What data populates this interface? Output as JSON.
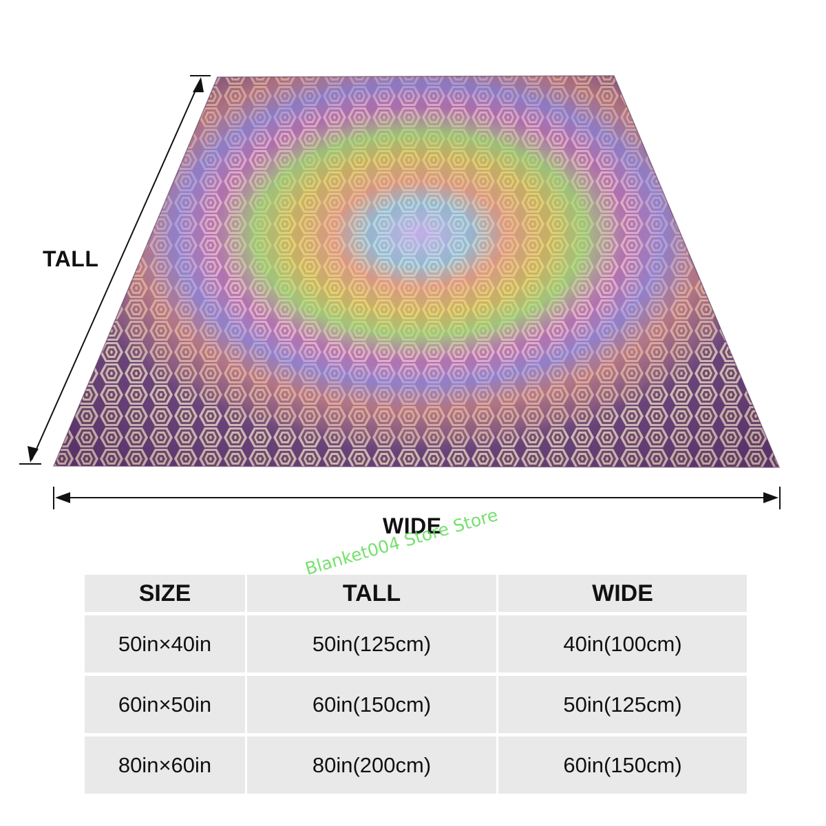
{
  "labels": {
    "tall": "TALL",
    "wide": "WIDE"
  },
  "watermark": "Blanket004 Store Store",
  "table": {
    "headers": [
      "SIZE",
      "TALL",
      "WIDE"
    ],
    "rows": [
      [
        "50in×40in",
        "50in(125cm)",
        "40in(100cm)"
      ],
      [
        "60in×50in",
        "60in(150cm)",
        "50in(125cm)"
      ],
      [
        "80in×60in",
        "80in(200cm)",
        "60in(150cm)"
      ]
    ]
  },
  "colors": {
    "table_cell": "#e9e9e9",
    "text": "#111111",
    "watermark": "#5ddb55",
    "pattern_outer": "#8a5a8f",
    "pattern_ring_pink": "#e98a7a",
    "pattern_ring_violet": "#9b8ee8",
    "pattern_ring_green": "#9fd46a",
    "pattern_ring_yellow": "#e8d04a",
    "pattern_center": "#c0a8e8"
  },
  "icons": {
    "tall_arrow": "double-arrow-diagonal-icon",
    "wide_arrow": "double-arrow-horizontal-icon"
  }
}
